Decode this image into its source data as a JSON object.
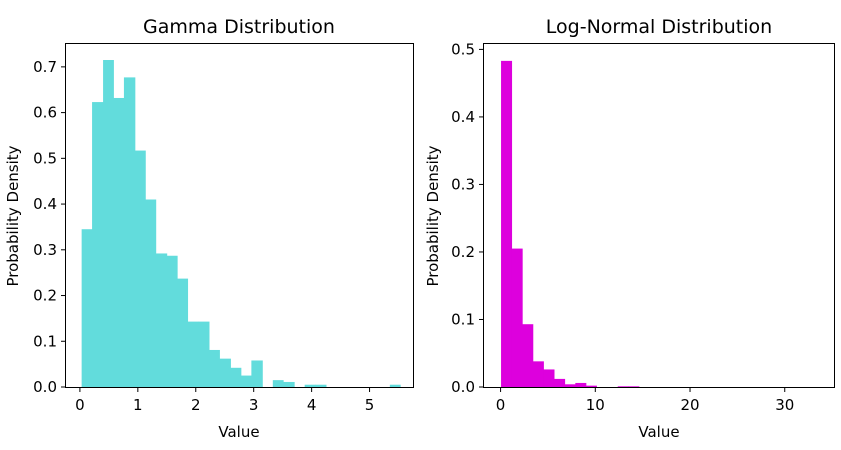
{
  "chart_data": [
    {
      "type": "bar",
      "title": "Gamma Distribution",
      "xlabel": "Value",
      "ylabel": "Probability Density",
      "xlim": [
        -0.24,
        5.75
      ],
      "ylim": [
        0,
        0.75
      ],
      "xticks": [
        0,
        1,
        2,
        3,
        4,
        5
      ],
      "yticks": [
        0.0,
        0.1,
        0.2,
        0.3,
        0.4,
        0.5,
        0.6,
        0.7
      ],
      "ytick_labels": [
        "0.0",
        "0.1",
        "0.2",
        "0.3",
        "0.4",
        "0.5",
        "0.6",
        "0.7"
      ],
      "color": "#62dcdc",
      "bins": [
        {
          "x0": 0.03,
          "x1": 0.21,
          "value": 0.345
        },
        {
          "x0": 0.21,
          "x1": 0.4,
          "value": 0.623
        },
        {
          "x0": 0.4,
          "x1": 0.58,
          "value": 0.715
        },
        {
          "x0": 0.58,
          "x1": 0.76,
          "value": 0.632
        },
        {
          "x0": 0.76,
          "x1": 0.95,
          "value": 0.677
        },
        {
          "x0": 0.95,
          "x1": 1.13,
          "value": 0.517
        },
        {
          "x0": 1.13,
          "x1": 1.31,
          "value": 0.41
        },
        {
          "x0": 1.31,
          "x1": 1.5,
          "value": 0.292
        },
        {
          "x0": 1.5,
          "x1": 1.68,
          "value": 0.287
        },
        {
          "x0": 1.68,
          "x1": 1.86,
          "value": 0.237
        },
        {
          "x0": 1.86,
          "x1": 2.05,
          "value": 0.143
        },
        {
          "x0": 2.05,
          "x1": 2.23,
          "value": 0.143
        },
        {
          "x0": 2.23,
          "x1": 2.41,
          "value": 0.081
        },
        {
          "x0": 2.41,
          "x1": 2.6,
          "value": 0.062
        },
        {
          "x0": 2.6,
          "x1": 2.78,
          "value": 0.042
        },
        {
          "x0": 2.78,
          "x1": 2.96,
          "value": 0.025
        },
        {
          "x0": 2.96,
          "x1": 3.15,
          "value": 0.058
        },
        {
          "x0": 3.15,
          "x1": 3.33,
          "value": 0.0
        },
        {
          "x0": 3.33,
          "x1": 3.51,
          "value": 0.015
        },
        {
          "x0": 3.51,
          "x1": 3.7,
          "value": 0.011
        },
        {
          "x0": 3.7,
          "x1": 3.88,
          "value": 0.0
        },
        {
          "x0": 3.88,
          "x1": 4.06,
          "value": 0.005
        },
        {
          "x0": 4.06,
          "x1": 4.25,
          "value": 0.005
        },
        {
          "x0": 4.25,
          "x1": 4.43,
          "value": 0.0
        },
        {
          "x0": 4.43,
          "x1": 4.61,
          "value": 0.0
        },
        {
          "x0": 4.61,
          "x1": 4.8,
          "value": 0.0
        },
        {
          "x0": 4.8,
          "x1": 4.98,
          "value": 0.0
        },
        {
          "x0": 4.98,
          "x1": 5.16,
          "value": 0.0
        },
        {
          "x0": 5.16,
          "x1": 5.35,
          "value": 0.0
        },
        {
          "x0": 5.35,
          "x1": 5.53,
          "value": 0.005
        }
      ]
    },
    {
      "type": "bar",
      "title": "Log-Normal Distribution",
      "xlabel": "Value",
      "ylabel": "Probability Density",
      "xlim": [
        -1.75,
        35.2
      ],
      "ylim": [
        0,
        0.508
      ],
      "xticks": [
        0,
        10,
        20,
        30
      ],
      "yticks": [
        0.0,
        0.1,
        0.2,
        0.3,
        0.4,
        0.5
      ],
      "ytick_labels": [
        "0.0",
        "0.1",
        "0.2",
        "0.3",
        "0.4",
        "0.5"
      ],
      "color": "#dd00dd",
      "bins": [
        {
          "x0": 0.05,
          "x1": 1.17,
          "value": 0.483
        },
        {
          "x0": 1.17,
          "x1": 2.29,
          "value": 0.205
        },
        {
          "x0": 2.29,
          "x1": 3.41,
          "value": 0.093
        },
        {
          "x0": 3.41,
          "x1": 4.53,
          "value": 0.038
        },
        {
          "x0": 4.53,
          "x1": 5.65,
          "value": 0.026
        },
        {
          "x0": 5.65,
          "x1": 6.77,
          "value": 0.012
        },
        {
          "x0": 6.77,
          "x1": 7.89,
          "value": 0.004
        },
        {
          "x0": 7.89,
          "x1": 9.01,
          "value": 0.006
        },
        {
          "x0": 9.01,
          "x1": 10.13,
          "value": 0.002
        },
        {
          "x0": 10.13,
          "x1": 11.25,
          "value": 0.0
        },
        {
          "x0": 11.25,
          "x1": 12.37,
          "value": 0.0
        },
        {
          "x0": 12.37,
          "x1": 13.49,
          "value": 0.001
        },
        {
          "x0": 13.49,
          "x1": 14.61,
          "value": 0.001
        },
        {
          "x0": 14.61,
          "x1": 15.73,
          "value": 0.0
        },
        {
          "x0": 15.73,
          "x1": 16.85,
          "value": 0.0
        },
        {
          "x0": 16.85,
          "x1": 17.97,
          "value": 0.0
        },
        {
          "x0": 17.97,
          "x1": 19.09,
          "value": 0.0
        },
        {
          "x0": 19.09,
          "x1": 20.21,
          "value": 0.0
        },
        {
          "x0": 20.21,
          "x1": 21.33,
          "value": 0.0
        },
        {
          "x0": 21.33,
          "x1": 22.45,
          "value": 0.0
        },
        {
          "x0": 22.45,
          "x1": 23.57,
          "value": 0.0
        },
        {
          "x0": 23.57,
          "x1": 24.69,
          "value": 0.0
        },
        {
          "x0": 24.69,
          "x1": 25.81,
          "value": 0.0
        },
        {
          "x0": 25.81,
          "x1": 26.93,
          "value": 0.0
        },
        {
          "x0": 26.93,
          "x1": 28.05,
          "value": 0.0
        },
        {
          "x0": 28.05,
          "x1": 29.17,
          "value": 0.0
        },
        {
          "x0": 29.17,
          "x1": 30.29,
          "value": 0.0
        },
        {
          "x0": 30.29,
          "x1": 31.41,
          "value": 0.0
        },
        {
          "x0": 31.41,
          "x1": 32.53,
          "value": 0.0
        },
        {
          "x0": 32.53,
          "x1": 33.65,
          "value": 0.0
        }
      ]
    }
  ]
}
